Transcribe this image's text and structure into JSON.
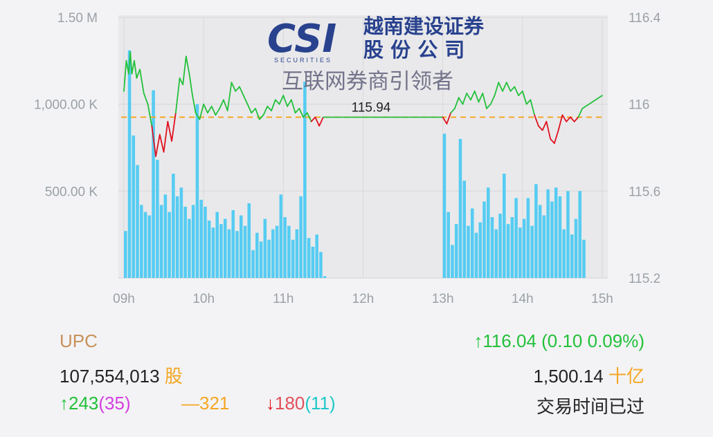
{
  "chart_data": {
    "type": "line+bar",
    "x_ticks": [
      "09h",
      "10h",
      "11h",
      "12h",
      "13h",
      "14h",
      "15h"
    ],
    "x_range_hours": [
      9,
      15
    ],
    "left_axis_ticks": [
      "1.50 M",
      "1,000.00 K",
      "500.00 K"
    ],
    "left_axis_range": [
      0,
      1500000
    ],
    "right_axis_ticks": [
      "116.4",
      "116",
      "115.6",
      "115.2"
    ],
    "right_axis_range": [
      115.2,
      116.4
    ],
    "reference_price": 115.94,
    "reference_label": "115.94",
    "colors": {
      "up": "#22c03a",
      "down": "#e0101e",
      "volume": "#56ccf2",
      "reference": "#f5a623"
    },
    "price_series": [
      {
        "t": 9.0,
        "p": 116.06
      },
      {
        "t": 9.03,
        "p": 116.2
      },
      {
        "t": 9.06,
        "p": 116.14
      },
      {
        "t": 9.08,
        "p": 116.24
      },
      {
        "t": 9.1,
        "p": 116.14
      },
      {
        "t": 9.13,
        "p": 116.2
      },
      {
        "t": 9.16,
        "p": 116.12
      },
      {
        "t": 9.2,
        "p": 116.16
      },
      {
        "t": 9.25,
        "p": 116.05
      },
      {
        "t": 9.3,
        "p": 116.0
      },
      {
        "t": 9.35,
        "p": 115.9
      },
      {
        "t": 9.4,
        "p": 115.76
      },
      {
        "t": 9.45,
        "p": 115.86
      },
      {
        "t": 9.5,
        "p": 115.78
      },
      {
        "t": 9.55,
        "p": 115.92
      },
      {
        "t": 9.6,
        "p": 115.83
      },
      {
        "t": 9.65,
        "p": 115.96
      },
      {
        "t": 9.7,
        "p": 116.12
      },
      {
        "t": 9.74,
        "p": 116.09
      },
      {
        "t": 9.78,
        "p": 116.22
      },
      {
        "t": 9.82,
        "p": 116.14
      },
      {
        "t": 9.86,
        "p": 116.04
      },
      {
        "t": 9.9,
        "p": 115.96
      },
      {
        "t": 9.95,
        "p": 115.93
      },
      {
        "t": 10.0,
        "p": 116.0
      },
      {
        "t": 10.05,
        "p": 115.96
      },
      {
        "t": 10.1,
        "p": 115.99
      },
      {
        "t": 10.15,
        "p": 115.95
      },
      {
        "t": 10.2,
        "p": 115.98
      },
      {
        "t": 10.25,
        "p": 116.02
      },
      {
        "t": 10.3,
        "p": 115.97
      },
      {
        "t": 10.35,
        "p": 116.1
      },
      {
        "t": 10.4,
        "p": 116.06
      },
      {
        "t": 10.45,
        "p": 116.08
      },
      {
        "t": 10.5,
        "p": 116.04
      },
      {
        "t": 10.55,
        "p": 116.0
      },
      {
        "t": 10.6,
        "p": 115.96
      },
      {
        "t": 10.65,
        "p": 115.98
      },
      {
        "t": 10.7,
        "p": 115.93
      },
      {
        "t": 10.75,
        "p": 115.95
      },
      {
        "t": 10.8,
        "p": 115.99
      },
      {
        "t": 10.85,
        "p": 115.97
      },
      {
        "t": 10.9,
        "p": 116.02
      },
      {
        "t": 10.95,
        "p": 116.0
      },
      {
        "t": 11.0,
        "p": 116.04
      },
      {
        "t": 11.05,
        "p": 115.99
      },
      {
        "t": 11.1,
        "p": 116.02
      },
      {
        "t": 11.15,
        "p": 115.96
      },
      {
        "t": 11.2,
        "p": 115.98
      },
      {
        "t": 11.25,
        "p": 115.94
      },
      {
        "t": 11.3,
        "p": 115.96
      },
      {
        "t": 11.35,
        "p": 115.92
      },
      {
        "t": 11.4,
        "p": 115.94
      },
      {
        "t": 11.45,
        "p": 115.9
      },
      {
        "t": 11.5,
        "p": 115.94
      },
      {
        "t": 13.0,
        "p": 115.94
      },
      {
        "t": 13.05,
        "p": 115.91
      },
      {
        "t": 13.1,
        "p": 115.96
      },
      {
        "t": 13.15,
        "p": 115.98
      },
      {
        "t": 13.2,
        "p": 116.03
      },
      {
        "t": 13.25,
        "p": 116.0
      },
      {
        "t": 13.3,
        "p": 116.05
      },
      {
        "t": 13.35,
        "p": 116.02
      },
      {
        "t": 13.4,
        "p": 116.06
      },
      {
        "t": 13.45,
        "p": 116.01
      },
      {
        "t": 13.5,
        "p": 116.05
      },
      {
        "t": 13.55,
        "p": 115.98
      },
      {
        "t": 13.6,
        "p": 116.0
      },
      {
        "t": 13.65,
        "p": 116.04
      },
      {
        "t": 13.7,
        "p": 116.1
      },
      {
        "t": 13.75,
        "p": 116.06
      },
      {
        "t": 13.8,
        "p": 116.1
      },
      {
        "t": 13.85,
        "p": 116.06
      },
      {
        "t": 13.9,
        "p": 116.08
      },
      {
        "t": 13.95,
        "p": 116.04
      },
      {
        "t": 14.0,
        "p": 116.06
      },
      {
        "t": 14.05,
        "p": 116.0
      },
      {
        "t": 14.1,
        "p": 116.02
      },
      {
        "t": 14.15,
        "p": 115.95
      },
      {
        "t": 14.2,
        "p": 115.9
      },
      {
        "t": 14.25,
        "p": 115.88
      },
      {
        "t": 14.3,
        "p": 115.92
      },
      {
        "t": 14.35,
        "p": 115.84
      },
      {
        "t": 14.4,
        "p": 115.82
      },
      {
        "t": 14.45,
        "p": 115.88
      },
      {
        "t": 14.5,
        "p": 115.95
      },
      {
        "t": 14.55,
        "p": 115.92
      },
      {
        "t": 14.6,
        "p": 115.94
      },
      {
        "t": 14.65,
        "p": 115.92
      },
      {
        "t": 14.7,
        "p": 115.94
      },
      {
        "t": 14.75,
        "p": 115.98
      },
      {
        "t": 15.0,
        "p": 116.04
      }
    ],
    "volume_series": [
      {
        "t": 9.0,
        "v": 270000
      },
      {
        "t": 9.05,
        "v": 1310000
      },
      {
        "t": 9.1,
        "v": 820000
      },
      {
        "t": 9.15,
        "v": 650000
      },
      {
        "t": 9.2,
        "v": 420000
      },
      {
        "t": 9.25,
        "v": 380000
      },
      {
        "t": 9.3,
        "v": 360000
      },
      {
        "t": 9.35,
        "v": 1080000
      },
      {
        "t": 9.4,
        "v": 680000
      },
      {
        "t": 9.45,
        "v": 420000
      },
      {
        "t": 9.5,
        "v": 480000
      },
      {
        "t": 9.55,
        "v": 380000
      },
      {
        "t": 9.6,
        "v": 600000
      },
      {
        "t": 9.65,
        "v": 470000
      },
      {
        "t": 9.7,
        "v": 520000
      },
      {
        "t": 9.75,
        "v": 410000
      },
      {
        "t": 9.8,
        "v": 340000
      },
      {
        "t": 9.85,
        "v": 420000
      },
      {
        "t": 9.9,
        "v": 1000000
      },
      {
        "t": 9.95,
        "v": 450000
      },
      {
        "t": 10.0,
        "v": 410000
      },
      {
        "t": 10.05,
        "v": 330000
      },
      {
        "t": 10.1,
        "v": 290000
      },
      {
        "t": 10.15,
        "v": 380000
      },
      {
        "t": 10.2,
        "v": 310000
      },
      {
        "t": 10.25,
        "v": 340000
      },
      {
        "t": 10.3,
        "v": 280000
      },
      {
        "t": 10.35,
        "v": 390000
      },
      {
        "t": 10.4,
        "v": 270000
      },
      {
        "t": 10.45,
        "v": 360000
      },
      {
        "t": 10.5,
        "v": 300000
      },
      {
        "t": 10.55,
        "v": 430000
      },
      {
        "t": 10.6,
        "v": 160000
      },
      {
        "t": 10.65,
        "v": 260000
      },
      {
        "t": 10.7,
        "v": 210000
      },
      {
        "t": 10.75,
        "v": 340000
      },
      {
        "t": 10.8,
        "v": 220000
      },
      {
        "t": 10.85,
        "v": 280000
      },
      {
        "t": 10.9,
        "v": 300000
      },
      {
        "t": 10.95,
        "v": 480000
      },
      {
        "t": 11.0,
        "v": 350000
      },
      {
        "t": 11.05,
        "v": 300000
      },
      {
        "t": 11.1,
        "v": 220000
      },
      {
        "t": 11.15,
        "v": 280000
      },
      {
        "t": 11.2,
        "v": 470000
      },
      {
        "t": 11.25,
        "v": 1130000
      },
      {
        "t": 11.3,
        "v": 230000
      },
      {
        "t": 11.35,
        "v": 180000
      },
      {
        "t": 11.4,
        "v": 250000
      },
      {
        "t": 11.45,
        "v": 150000
      },
      {
        "t": 11.5,
        "v": 10000
      },
      {
        "t": 13.0,
        "v": 830000
      },
      {
        "t": 13.05,
        "v": 380000
      },
      {
        "t": 13.1,
        "v": 190000
      },
      {
        "t": 13.15,
        "v": 310000
      },
      {
        "t": 13.2,
        "v": 800000
      },
      {
        "t": 13.25,
        "v": 560000
      },
      {
        "t": 13.3,
        "v": 300000
      },
      {
        "t": 13.35,
        "v": 400000
      },
      {
        "t": 13.4,
        "v": 260000
      },
      {
        "t": 13.45,
        "v": 320000
      },
      {
        "t": 13.5,
        "v": 440000
      },
      {
        "t": 13.55,
        "v": 520000
      },
      {
        "t": 13.6,
        "v": 350000
      },
      {
        "t": 13.65,
        "v": 280000
      },
      {
        "t": 13.7,
        "v": 370000
      },
      {
        "t": 13.75,
        "v": 600000
      },
      {
        "t": 13.8,
        "v": 310000
      },
      {
        "t": 13.85,
        "v": 350000
      },
      {
        "t": 13.9,
        "v": 460000
      },
      {
        "t": 13.95,
        "v": 290000
      },
      {
        "t": 14.0,
        "v": 340000
      },
      {
        "t": 14.05,
        "v": 460000
      },
      {
        "t": 14.1,
        "v": 300000
      },
      {
        "t": 14.15,
        "v": 540000
      },
      {
        "t": 14.2,
        "v": 420000
      },
      {
        "t": 14.25,
        "v": 360000
      },
      {
        "t": 14.3,
        "v": 510000
      },
      {
        "t": 14.35,
        "v": 440000
      },
      {
        "t": 14.4,
        "v": 520000
      },
      {
        "t": 14.45,
        "v": 470000
      },
      {
        "t": 14.5,
        "v": 280000
      },
      {
        "t": 14.55,
        "v": 500000
      },
      {
        "t": 14.6,
        "v": 250000
      },
      {
        "t": 14.65,
        "v": 340000
      },
      {
        "t": 14.7,
        "v": 500000
      },
      {
        "t": 14.75,
        "v": 220000
      }
    ]
  },
  "watermark": {
    "logo_letters": "CSI",
    "logo_sub": "SECURITIES",
    "company_line1": "越南建设证券",
    "company_line2": "股 份 公 司",
    "slogan": "互联网券商引领者"
  },
  "summary": {
    "index_name": "UPC",
    "price_line": "116.04 (0.10 0.09%)",
    "volume_value": "107,554,013",
    "volume_unit": "股",
    "value_amount": "1,500.14",
    "value_unit": "十亿",
    "advance_count": "243",
    "advance_ceiling": "(35)",
    "unchanged_count": "321",
    "decline_count": "180",
    "decline_floor": "(11)",
    "status": "交易时间已过",
    "arrow_up": "↑",
    "arrow_down": "↓",
    "dash": "—",
    "colors": {
      "name": "#c8915a",
      "up": "#22c03a",
      "down": "#e0101e",
      "ceiling": "#d43ee0",
      "unchanged": "#f5a623",
      "floor": "#1fc8c8",
      "unit": "#f5a623",
      "text": "#222222"
    }
  }
}
